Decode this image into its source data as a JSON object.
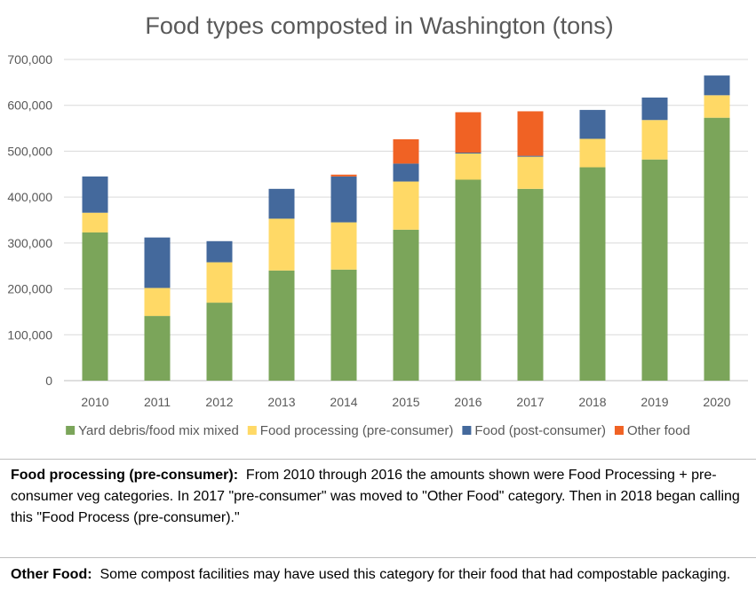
{
  "chart_data": {
    "type": "bar",
    "stacked": true,
    "title": "Food types composted in Washington (tons)",
    "xlabel": "",
    "ylabel": "",
    "ylim": [
      0,
      700000
    ],
    "yticks": [
      0,
      100000,
      200000,
      300000,
      400000,
      500000,
      600000,
      700000
    ],
    "ytick_labels": [
      "0",
      "100,000",
      "200,000",
      "300,000",
      "400,000",
      "500,000",
      "600,000",
      "700,000"
    ],
    "grid": true,
    "legend_position": "bottom",
    "categories": [
      "2010",
      "2011",
      "2012",
      "2013",
      "2014",
      "2015",
      "2016",
      "2017",
      "2018",
      "2019",
      "2020"
    ],
    "series": [
      {
        "name": "Yard debris/food mix mixed",
        "color": "#7ba55a",
        "values": [
          323000,
          141000,
          170000,
          240000,
          242000,
          329000,
          438000,
          418000,
          465000,
          482000,
          573000
        ]
      },
      {
        "name": "Food processing (pre-consumer)",
        "color": "#ffd966",
        "values": [
          43000,
          61000,
          88000,
          113000,
          103000,
          105000,
          57000,
          70000,
          62000,
          86000,
          49000
        ]
      },
      {
        "name": "Food (post-consumer)",
        "color": "#44699c",
        "values": [
          79000,
          110000,
          46000,
          65000,
          100000,
          39000,
          2000,
          2000,
          63000,
          49000,
          43000
        ]
      },
      {
        "name": "Other food",
        "color": "#f06224",
        "values": [
          0,
          0,
          0,
          0,
          4000,
          53000,
          88000,
          97000,
          0,
          0,
          0
        ]
      }
    ]
  },
  "notes": [
    {
      "heading": "Food processing (pre-consumer):",
      "text": "From 2010 through 2016 the amounts shown were Food Processing + pre-consumer veg categories. In 2017 \"pre-consumer\" was moved to \"Other Food\" category. Then in 2018 began calling this \"Food Process (pre-consumer).\""
    },
    {
      "heading": "Other Food:",
      "text": "Some compost facilities may have used this category for their food that had compostable packaging."
    }
  ]
}
